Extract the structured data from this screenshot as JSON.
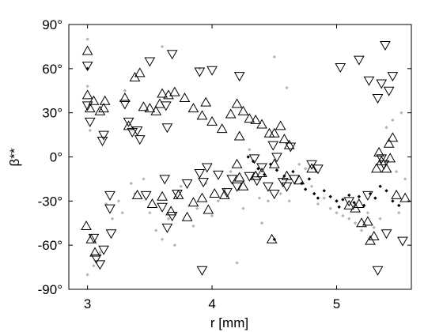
{
  "chart_data": {
    "type": "scatter",
    "title": "",
    "xlabel": "r [mm]",
    "ylabel": "β**",
    "xlim": [
      2.85,
      5.6
    ],
    "ylim": [
      -90,
      90
    ],
    "xticks": [
      3,
      4,
      5
    ],
    "xtick_labels": [
      "3",
      "4",
      "5"
    ],
    "yticks": [
      90,
      60,
      30,
      0,
      -30,
      -60,
      -90
    ],
    "ytick_labels": [
      "90°",
      "60°",
      "30°",
      "0°",
      "-30°",
      "-60°",
      "-90°"
    ],
    "grid": false,
    "legend": "none",
    "colors": {
      "up": "#000000",
      "down": "#000000",
      "dark": "#000000",
      "light": "#b5b5b5"
    },
    "series": [
      {
        "marker": "triangle-up",
        "points": [
          [
            3.0,
            72
          ],
          [
            3.0,
            42
          ],
          [
            3.02,
            33
          ],
          [
            3.05,
            38
          ],
          [
            3.1,
            31
          ],
          [
            3.13,
            33
          ],
          [
            3.14,
            38
          ],
          [
            2.99,
            -47
          ],
          [
            3.03,
            -56
          ],
          [
            3.06,
            -65
          ],
          [
            3.3,
            40
          ],
          [
            3.33,
            21
          ],
          [
            3.38,
            54
          ],
          [
            3.42,
            57
          ],
          [
            3.45,
            34
          ],
          [
            3.5,
            33
          ],
          [
            3.55,
            31
          ],
          [
            3.58,
            36
          ],
          [
            3.6,
            43
          ],
          [
            3.65,
            42
          ],
          [
            3.7,
            44
          ],
          [
            3.78,
            40
          ],
          [
            3.85,
            33
          ],
          [
            3.92,
            28
          ],
          [
            3.95,
            37
          ],
          [
            4.0,
            24
          ],
          [
            4.08,
            19
          ],
          [
            4.15,
            29
          ],
          [
            4.2,
            36
          ],
          [
            4.22,
            14
          ],
          [
            4.25,
            31
          ],
          [
            4.3,
            26
          ],
          [
            4.35,
            25
          ],
          [
            4.4,
            22
          ],
          [
            4.46,
            16
          ],
          [
            4.5,
            16
          ],
          [
            4.55,
            21
          ],
          [
            4.58,
            12
          ],
          [
            4.62,
            8
          ],
          [
            4.2,
            -5
          ],
          [
            4.22,
            -14
          ],
          [
            4.25,
            -20
          ],
          [
            4.35,
            -13
          ],
          [
            4.4,
            -11
          ],
          [
            3.4,
            -26
          ],
          [
            3.52,
            -32
          ],
          [
            3.6,
            -27
          ],
          [
            3.67,
            -37
          ],
          [
            3.73,
            -26
          ],
          [
            3.8,
            -41
          ],
          [
            3.85,
            -31
          ],
          [
            3.92,
            -28
          ],
          [
            3.97,
            -36
          ],
          [
            4.02,
            -25
          ],
          [
            4.1,
            -26
          ],
          [
            4.48,
            -56
          ],
          [
            4.5,
            -5
          ],
          [
            4.6,
            -13
          ],
          [
            4.7,
            -16
          ],
          [
            4.8,
            -8
          ],
          [
            5.1,
            -33
          ],
          [
            5.15,
            -35
          ],
          [
            5.18,
            -32
          ],
          [
            5.2,
            -45
          ],
          [
            5.25,
            -44
          ],
          [
            5.27,
            -57
          ],
          [
            5.3,
            -54
          ],
          [
            5.32,
            -8
          ],
          [
            5.34,
            3
          ],
          [
            5.36,
            -3
          ],
          [
            5.4,
            -8
          ],
          [
            5.42,
            9
          ],
          [
            5.43,
            -1
          ],
          [
            5.45,
            13
          ],
          [
            5.48,
            -26
          ],
          [
            5.55,
            -28
          ]
        ]
      },
      {
        "marker": "triangle-down",
        "points": [
          [
            3.0,
            62
          ],
          [
            3.0,
            35
          ],
          [
            3.02,
            24
          ],
          [
            3.05,
            -55
          ],
          [
            3.07,
            -69
          ],
          [
            3.1,
            -73
          ],
          [
            3.13,
            -63
          ],
          [
            3.12,
            11
          ],
          [
            3.13,
            15
          ],
          [
            3.18,
            -26
          ],
          [
            3.18,
            -35
          ],
          [
            3.19,
            -52
          ],
          [
            3.3,
            36
          ],
          [
            3.33,
            24
          ],
          [
            3.36,
            17
          ],
          [
            3.4,
            18
          ],
          [
            3.42,
            12
          ],
          [
            3.47,
            -26
          ],
          [
            3.5,
            65
          ],
          [
            3.6,
            -34
          ],
          [
            3.62,
            -15
          ],
          [
            3.64,
            -48
          ],
          [
            3.68,
            -40
          ],
          [
            3.63,
            35
          ],
          [
            3.64,
            20
          ],
          [
            3.68,
            70
          ],
          [
            3.72,
            -25
          ],
          [
            3.8,
            -18
          ],
          [
            3.9,
            58
          ],
          [
            3.92,
            -77
          ],
          [
            3.9,
            -11
          ],
          [
            3.93,
            -17
          ],
          [
            3.96,
            -7
          ],
          [
            4.0,
            59
          ],
          [
            4.05,
            -12
          ],
          [
            4.12,
            -24
          ],
          [
            4.16,
            -15
          ],
          [
            4.22,
            55
          ],
          [
            4.2,
            -20
          ],
          [
            4.3,
            -13
          ],
          [
            4.34,
            -1
          ],
          [
            4.36,
            -16
          ],
          [
            4.4,
            -7
          ],
          [
            4.45,
            -20
          ],
          [
            4.49,
            8
          ],
          [
            4.5,
            -25
          ],
          [
            4.52,
            0
          ],
          [
            4.57,
            -17
          ],
          [
            4.6,
            -20
          ],
          [
            4.63,
            7
          ],
          [
            4.66,
            -15
          ],
          [
            4.8,
            -5
          ],
          [
            4.85,
            -8
          ],
          [
            5.03,
            61
          ],
          [
            5.1,
            -30
          ],
          [
            5.18,
            66
          ],
          [
            5.25,
            -26
          ],
          [
            5.26,
            52
          ],
          [
            5.33,
            40
          ],
          [
            5.33,
            -77
          ],
          [
            5.36,
            50
          ],
          [
            5.39,
            76
          ],
          [
            5.42,
            45
          ],
          [
            5.45,
            55
          ],
          [
            5.4,
            -52
          ],
          [
            5.53,
            -57
          ],
          [
            5.36,
            -1
          ],
          [
            5.38,
            -5
          ]
        ]
      },
      {
        "marker": "dot-dark",
        "points": [
          [
            3.0,
            60
          ],
          [
            4.29,
            0
          ],
          [
            4.33,
            -3
          ],
          [
            4.37,
            -8
          ],
          [
            4.42,
            -12
          ],
          [
            4.47,
            -5
          ],
          [
            4.52,
            -9
          ],
          [
            4.58,
            -13
          ],
          [
            4.65,
            -10
          ],
          [
            4.72,
            -18
          ],
          [
            4.75,
            -22
          ],
          [
            4.78,
            -15
          ],
          [
            4.82,
            -25
          ],
          [
            4.85,
            -28
          ],
          [
            4.9,
            -23
          ],
          [
            4.95,
            -27
          ],
          [
            5.0,
            -30
          ],
          [
            5.05,
            -29
          ],
          [
            5.1,
            -26
          ],
          [
            5.14,
            -31
          ],
          [
            5.18,
            -27
          ],
          [
            5.22,
            -33
          ],
          [
            5.27,
            -25
          ],
          [
            5.31,
            -28
          ],
          [
            5.35,
            -20
          ],
          [
            5.4,
            -23
          ],
          [
            5.45,
            -30
          ],
          [
            5.5,
            -33
          ],
          [
            4.5,
            -56
          ],
          [
            5.02,
            -34
          ]
        ]
      },
      {
        "marker": "dot-light",
        "points": [
          [
            3.0,
            80
          ],
          [
            3.0,
            48
          ],
          [
            3.0,
            -80
          ],
          [
            3.05,
            -74
          ],
          [
            3.1,
            -65
          ],
          [
            3.02,
            18
          ],
          [
            3.15,
            -32
          ],
          [
            3.2,
            -42
          ],
          [
            3.25,
            -30
          ],
          [
            3.28,
            -38
          ],
          [
            3.3,
            45
          ],
          [
            3.35,
            -18
          ],
          [
            3.38,
            -25
          ],
          [
            3.45,
            -15
          ],
          [
            3.5,
            -38
          ],
          [
            3.55,
            -50
          ],
          [
            3.6,
            75
          ],
          [
            3.6,
            -56
          ],
          [
            3.65,
            -42
          ],
          [
            3.7,
            -60
          ],
          [
            3.75,
            -20
          ],
          [
            3.85,
            -47
          ],
          [
            3.88,
            -35
          ],
          [
            3.9,
            60
          ],
          [
            3.95,
            -18
          ],
          [
            4.0,
            -40
          ],
          [
            4.05,
            -30
          ],
          [
            4.1,
            -22
          ],
          [
            4.15,
            -10
          ],
          [
            4.2,
            -72
          ],
          [
            4.25,
            -35
          ],
          [
            4.3,
            5
          ],
          [
            4.38,
            -28
          ],
          [
            4.45,
            -30
          ],
          [
            4.5,
            68
          ],
          [
            4.55,
            -25
          ],
          [
            4.6,
            47
          ],
          [
            4.62,
            -30
          ],
          [
            4.7,
            -5
          ],
          [
            4.75,
            -8
          ],
          [
            4.8,
            -20
          ],
          [
            4.85,
            -32
          ],
          [
            4.9,
            -28
          ],
          [
            4.95,
            -35
          ],
          [
            5.0,
            -38
          ],
          [
            5.05,
            -40
          ],
          [
            5.1,
            -42
          ],
          [
            5.15,
            -45
          ],
          [
            5.2,
            -50
          ],
          [
            5.25,
            -38
          ],
          [
            5.3,
            -48
          ],
          [
            5.35,
            -42
          ],
          [
            5.4,
            20
          ],
          [
            5.45,
            25
          ],
          [
            5.5,
            -38
          ],
          [
            5.55,
            -15
          ],
          [
            5.48,
            -10
          ],
          [
            5.52,
            30
          ],
          [
            4.4,
            -45
          ]
        ]
      }
    ]
  }
}
